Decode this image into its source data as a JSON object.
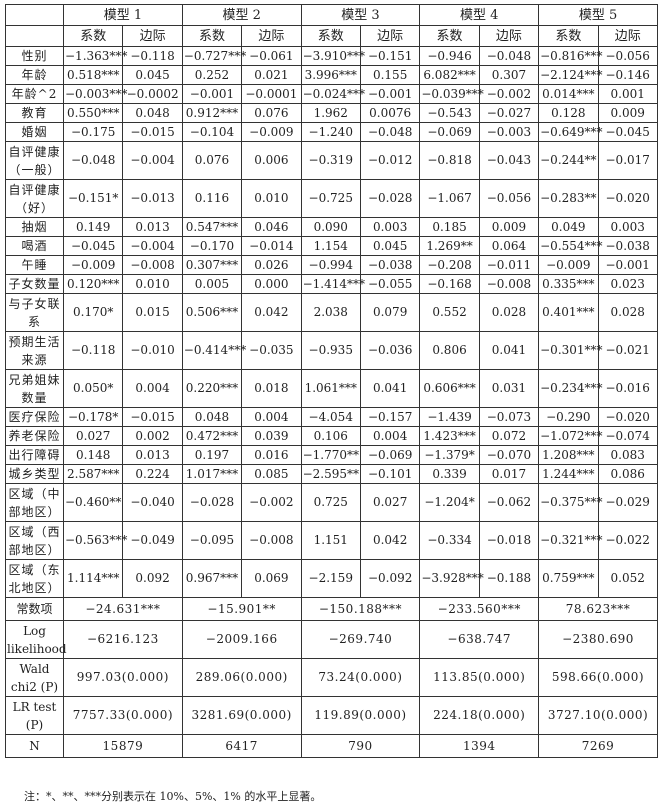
{
  "header": {
    "models": [
      "模型 1",
      "模型 2",
      "模型 3",
      "模型 4",
      "模型 5"
    ],
    "sub": [
      "系数",
      "边际"
    ]
  },
  "rows": [
    {
      "label": "性别",
      "cells": [
        "−1.363***",
        "−0.118",
        "−0.727***",
        "−0.061",
        "−3.910***",
        "−0.151",
        "−0.946",
        "−0.048",
        "−0.816***",
        "−0.056"
      ]
    },
    {
      "label": "年龄",
      "cells": [
        "0.518***",
        "0.045",
        "0.252",
        "0.021",
        "3.996***",
        "0.155",
        "6.082***",
        "0.307",
        "−2.124***",
        "−0.146"
      ]
    },
    {
      "label": "年龄^2",
      "cells": [
        "−0.003***",
        "−0.0002",
        "−0.001",
        "−0.0001",
        "−0.024***",
        "−0.001",
        "−0.039***",
        "−0.002",
        "0.014***",
        "0.001"
      ]
    },
    {
      "label": "教育",
      "cells": [
        "0.550***",
        "0.048",
        "0.912***",
        "0.076",
        "1.962",
        "0.0076",
        "−0.543",
        "−0.027",
        "0.128",
        "0.009"
      ]
    },
    {
      "label": "婚姻",
      "cells": [
        "−0.175",
        "−0.015",
        "−0.104",
        "−0.009",
        "−1.240",
        "−0.048",
        "−0.069",
        "−0.003",
        "−0.649***",
        "−0.045"
      ]
    },
    {
      "label": "自评健康（一般）",
      "cells": [
        "−0.048",
        "−0.004",
        "0.076",
        "0.006",
        "−0.319",
        "−0.012",
        "−0.818",
        "−0.043",
        "−0.244**",
        "−0.017"
      ],
      "tall": true
    },
    {
      "label": "自评健康（好）",
      "cells": [
        "−0.151*",
        "−0.013",
        "0.116",
        "0.010",
        "−0.725",
        "−0.028",
        "−1.067",
        "−0.056",
        "−0.283**",
        "−0.020"
      ],
      "tall": true
    },
    {
      "label": "抽烟",
      "cells": [
        "0.149",
        "0.013",
        "0.547***",
        "0.046",
        "0.090",
        "0.003",
        "0.185",
        "0.009",
        "0.049",
        "0.003"
      ]
    },
    {
      "label": "喝酒",
      "cells": [
        "−0.045",
        "−0.004",
        "−0.170",
        "−0.014",
        "1.154",
        "0.045",
        "1.269**",
        "0.064",
        "−0.554***",
        "−0.038"
      ]
    },
    {
      "label": "午睡",
      "cells": [
        "−0.009",
        "−0.008",
        "0.307***",
        "0.026",
        "−0.994",
        "−0.038",
        "−0.208",
        "−0.011",
        "−0.009",
        "−0.001"
      ]
    },
    {
      "label": "子女数量",
      "cells": [
        "0.120***",
        "0.010",
        "0.005",
        "0.000",
        "−1.414***",
        "−0.055",
        "−0.168",
        "−0.008",
        "0.335***",
        "0.023"
      ]
    },
    {
      "label": "与子女联系",
      "cells": [
        "0.170*",
        "0.015",
        "0.506***",
        "0.042",
        "2.038",
        "0.079",
        "0.552",
        "0.028",
        "0.401***",
        "0.028"
      ],
      "tall": true
    },
    {
      "label": "预期生活来源",
      "cells": [
        "−0.118",
        "−0.010",
        "−0.414***",
        "−0.035",
        "−0.935",
        "−0.036",
        "0.806",
        "0.041",
        "−0.301***",
        "−0.021"
      ],
      "tall": true
    },
    {
      "label": "兄弟姐妹数量",
      "cells": [
        "0.050*",
        "0.004",
        "0.220***",
        "0.018",
        "1.061***",
        "0.041",
        "0.606***",
        "0.031",
        "−0.234***",
        "−0.016"
      ],
      "tall": true
    },
    {
      "label": "医疗保险",
      "cells": [
        "−0.178*",
        "−0.015",
        "0.048",
        "0.004",
        "−4.054",
        "−0.157",
        "−1.439",
        "−0.073",
        "−0.290",
        "−0.020"
      ]
    },
    {
      "label": "养老保险",
      "cells": [
        "0.027",
        "0.002",
        "0.472***",
        "0.039",
        "0.106",
        "0.004",
        "1.423***",
        "0.072",
        "−1.072***",
        "−0.074"
      ]
    },
    {
      "label": "出行障碍",
      "cells": [
        "0.148",
        "0.013",
        "0.197",
        "0.016",
        "−1.770**",
        "−0.069",
        "−1.379*",
        "−0.070",
        "1.208***",
        "0.083"
      ]
    },
    {
      "label": "城乡类型",
      "cells": [
        "2.587***",
        "0.224",
        "1.017***",
        "0.085",
        "−2.595**",
        "−0.101",
        "0.339",
        "0.017",
        "1.244***",
        "0.086"
      ]
    },
    {
      "label": "区域（中部地区）",
      "cells": [
        "−0.460**",
        "−0.040",
        "−0.028",
        "−0.002",
        "0.725",
        "0.027",
        "−1.204*",
        "−0.062",
        "−0.375***",
        "−0.029"
      ],
      "tall": true
    },
    {
      "label": "区域（西部地区）",
      "cells": [
        "−0.563***",
        "−0.049",
        "−0.095",
        "−0.008",
        "1.151",
        "0.042",
        "−0.334",
        "−0.018",
        "−0.321***",
        "−0.022"
      ],
      "tall": true
    },
    {
      "label": "区域（东北地区）",
      "cells": [
        "1.114***",
        "0.092",
        "0.967***",
        "0.069",
        "−2.159",
        "−0.092",
        "−3.928***",
        "−0.188",
        "0.759***",
        "0.052"
      ],
      "tall": true
    }
  ],
  "summary": [
    {
      "label": "常数项",
      "cells": [
        "−24.631***",
        "−15.901**",
        "−150.188***",
        "−233.560***",
        "78.623***"
      ]
    },
    {
      "label": "Log likelihood",
      "cells": [
        "−6216.123",
        "−2009.166",
        "−269.740",
        "−638.747",
        "−2380.690"
      ],
      "tall": true
    },
    {
      "label": "Wald chi2 (P)",
      "cells": [
        "997.03(0.000)",
        "289.06(0.000)",
        "73.24(0.000)",
        "113.85(0.000)",
        "598.66(0.000)"
      ],
      "tall": true
    },
    {
      "label": "LR test (P)",
      "cells": [
        "7757.33(0.000)",
        "3281.69(0.000)",
        "119.89(0.000)",
        "224.18(0.000)",
        "3727.10(0.000)"
      ],
      "tall": true
    },
    {
      "label": "N",
      "cells": [
        "15879",
        "6417",
        "790",
        "1394",
        "7269"
      ]
    }
  ],
  "note": "注：*、**、***分别表示在 10%、5%、1% 的水平上显著。"
}
